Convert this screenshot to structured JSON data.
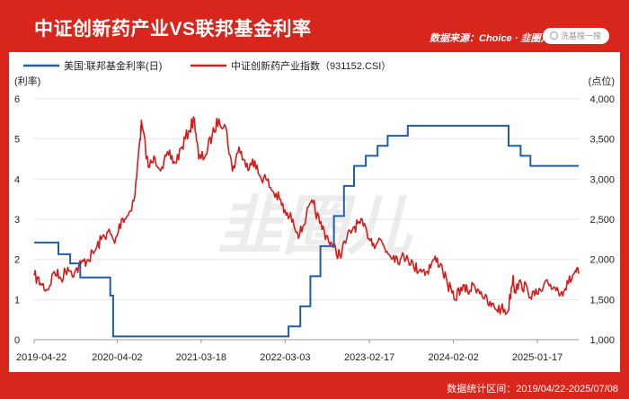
{
  "header": {
    "title": "中证创新药产业VS联邦基金利率",
    "source": "数据来源：Choice · 韭圈儿App",
    "search_placeholder": "洗基搜一搜"
  },
  "footer": {
    "period": "数据统计区间：2019/04/22-2025/07/08"
  },
  "watermark": "韭圈儿",
  "chart_data": {
    "type": "line",
    "x_axis": {
      "range": [
        "2019-04-22",
        "2025-07-08"
      ],
      "tick_labels": [
        "2019-04-22",
        "2020-04-02",
        "2021-03-18",
        "2022-03-03",
        "2023-02-17",
        "2024-02-02",
        "2025-01-17"
      ]
    },
    "y_left": {
      "label": "(利率)",
      "range": [
        0,
        6
      ],
      "ticks": [
        0,
        1,
        2,
        3,
        4,
        5,
        6
      ]
    },
    "y_right": {
      "label": "(点位)",
      "range": [
        1000,
        4000
      ],
      "ticks": [
        "1,000",
        "1,500",
        "2,000",
        "2,500",
        "3,000",
        "3,500",
        "4,000"
      ]
    },
    "legend": {
      "position": "top"
    },
    "series": [
      {
        "name": "美国:联邦基金利率(日)",
        "axis": "left",
        "color": "#1f5fa8",
        "step": true,
        "points": [
          [
            "2019-04-22",
            2.42
          ],
          [
            "2019-08-01",
            2.13
          ],
          [
            "2019-09-19",
            1.9
          ],
          [
            "2019-10-31",
            1.55
          ],
          [
            "2020-03-04",
            1.1
          ],
          [
            "2020-03-16",
            0.08
          ],
          [
            "2022-03-17",
            0.33
          ],
          [
            "2022-05-05",
            0.83
          ],
          [
            "2022-06-16",
            1.58
          ],
          [
            "2022-07-28",
            2.33
          ],
          [
            "2022-09-22",
            3.08
          ],
          [
            "2022-11-03",
            3.83
          ],
          [
            "2022-12-15",
            4.33
          ],
          [
            "2023-02-02",
            4.58
          ],
          [
            "2023-03-23",
            4.83
          ],
          [
            "2023-05-04",
            5.08
          ],
          [
            "2023-07-27",
            5.33
          ],
          [
            "2024-09-19",
            4.83
          ],
          [
            "2024-11-08",
            4.58
          ],
          [
            "2024-12-19",
            4.33
          ],
          [
            "2025-07-08",
            4.33
          ]
        ]
      },
      {
        "name": "中证创新药产业指数（931152.CSI）",
        "axis": "right",
        "color": "#d41b1b",
        "step": false,
        "points": [
          [
            "2019-04-22",
            1800
          ],
          [
            "2019-05-20",
            1700
          ],
          [
            "2019-06-17",
            1620
          ],
          [
            "2019-07-15",
            1850
          ],
          [
            "2019-08-12",
            1760
          ],
          [
            "2019-09-09",
            1900
          ],
          [
            "2019-10-07",
            1830
          ],
          [
            "2019-11-04",
            1950
          ],
          [
            "2019-12-02",
            2000
          ],
          [
            "2019-12-30",
            2100
          ],
          [
            "2020-01-27",
            2250
          ],
          [
            "2020-02-24",
            2350
          ],
          [
            "2020-03-23",
            2200
          ],
          [
            "2020-04-20",
            2500
          ],
          [
            "2020-05-18",
            2550
          ],
          [
            "2020-06-15",
            2800
          ],
          [
            "2020-07-06",
            3500
          ],
          [
            "2020-07-13",
            3700
          ],
          [
            "2020-08-10",
            3150
          ],
          [
            "2020-09-07",
            3250
          ],
          [
            "2020-10-05",
            3150
          ],
          [
            "2020-11-02",
            3300
          ],
          [
            "2020-11-30",
            3200
          ],
          [
            "2020-12-28",
            3400
          ],
          [
            "2021-01-25",
            3600
          ],
          [
            "2021-02-18",
            3750
          ],
          [
            "2021-03-08",
            3250
          ],
          [
            "2021-04-05",
            3300
          ],
          [
            "2021-05-03",
            3550
          ],
          [
            "2021-05-31",
            3750
          ],
          [
            "2021-06-28",
            3650
          ],
          [
            "2021-07-26",
            3100
          ],
          [
            "2021-08-23",
            3400
          ],
          [
            "2021-09-20",
            3150
          ],
          [
            "2021-10-18",
            3250
          ],
          [
            "2021-11-15",
            3050
          ],
          [
            "2021-12-13",
            3000
          ],
          [
            "2022-01-10",
            2850
          ],
          [
            "2022-02-07",
            2750
          ],
          [
            "2022-03-07",
            2550
          ],
          [
            "2022-04-04",
            2500
          ],
          [
            "2022-05-02",
            2300
          ],
          [
            "2022-05-30",
            2550
          ],
          [
            "2022-06-27",
            2700
          ],
          [
            "2022-07-25",
            2450
          ],
          [
            "2022-08-22",
            2300
          ],
          [
            "2022-09-19",
            2150
          ],
          [
            "2022-10-17",
            2050
          ],
          [
            "2022-11-14",
            2250
          ],
          [
            "2022-12-12",
            2400
          ],
          [
            "2023-01-09",
            2450
          ],
          [
            "2023-02-06",
            2350
          ],
          [
            "2023-03-06",
            2200
          ],
          [
            "2023-04-03",
            2250
          ],
          [
            "2023-05-01",
            2100
          ],
          [
            "2023-05-29",
            2050
          ],
          [
            "2023-06-26",
            2000
          ],
          [
            "2023-07-24",
            2050
          ],
          [
            "2023-08-21",
            1900
          ],
          [
            "2023-09-18",
            1880
          ],
          [
            "2023-10-16",
            1850
          ],
          [
            "2023-11-13",
            2000
          ],
          [
            "2023-12-11",
            1950
          ],
          [
            "2024-01-08",
            1700
          ],
          [
            "2024-02-05",
            1500
          ],
          [
            "2024-03-04",
            1650
          ],
          [
            "2024-04-01",
            1600
          ],
          [
            "2024-04-29",
            1680
          ],
          [
            "2024-05-27",
            1600
          ],
          [
            "2024-06-24",
            1450
          ],
          [
            "2024-07-22",
            1400
          ],
          [
            "2024-08-19",
            1380
          ],
          [
            "2024-09-16",
            1350
          ],
          [
            "2024-10-08",
            1800
          ],
          [
            "2024-10-14",
            1620
          ],
          [
            "2024-11-11",
            1700
          ],
          [
            "2024-12-09",
            1600
          ],
          [
            "2025-01-06",
            1550
          ],
          [
            "2025-02-03",
            1600
          ],
          [
            "2025-03-03",
            1700
          ],
          [
            "2025-03-31",
            1650
          ],
          [
            "2025-04-28",
            1600
          ],
          [
            "2025-05-26",
            1700
          ],
          [
            "2025-06-23",
            1850
          ],
          [
            "2025-07-08",
            1820
          ]
        ]
      }
    ]
  }
}
